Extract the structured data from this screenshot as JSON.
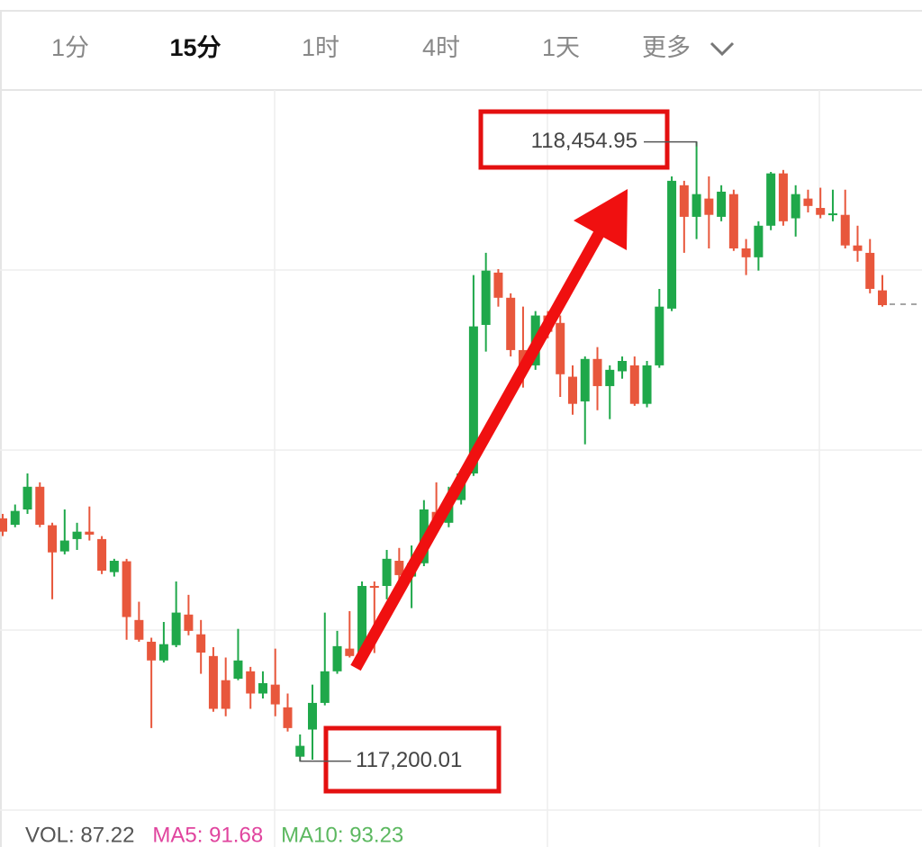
{
  "tabs": [
    "1分",
    "15分",
    "1时",
    "4时",
    "1天",
    "更多"
  ],
  "chart_data": {
    "type": "candlestick",
    "up_color": "#1fa84a",
    "down_color": "#e8573c",
    "ylim": [
      117026,
      118560
    ],
    "open": [
      117692,
      117679,
      117710,
      117756,
      117678,
      117625,
      117650,
      117665,
      117650,
      117583,
      117605,
      117486,
      117442,
      117404,
      117435,
      117497,
      117457,
      117413,
      117364,
      117367,
      117382,
      117337,
      117355,
      117309,
      117209,
      117264,
      117318,
      117382,
      117428,
      117413,
      117555,
      117555,
      117606,
      117574,
      117601,
      117705,
      117683,
      117729,
      117783,
      118084,
      118190,
      118139,
      118033,
      118002,
      118103,
      118088,
      117979,
      117929,
      118015,
      117960,
      117990,
      118002,
      117924,
      118002,
      118117,
      118367,
      118303,
      118340,
      118303,
      118349,
      118239,
      118221,
      118285,
      118391,
      118300,
      118340,
      118321,
      118307,
      118307,
      118245,
      118230,
      118154
    ],
    "high": [
      117701,
      117720,
      117783,
      117765,
      117683,
      117710,
      117683,
      117716,
      117656,
      117610,
      117610,
      117523,
      117450,
      117482,
      117564,
      117537,
      117486,
      117431,
      117410,
      117468,
      117391,
      117382,
      117428,
      117337,
      117254,
      117355,
      117501,
      117464,
      117504,
      117564,
      117564,
      117628,
      117632,
      117637,
      117729,
      117765,
      117756,
      117792,
      118185,
      118230,
      118197,
      118148,
      118121,
      118112,
      118112,
      118103,
      118002,
      118020,
      118039,
      118002,
      118020,
      118020,
      118011,
      118157,
      118385,
      118376,
      118454.95,
      118385,
      118367,
      118358,
      118258,
      118294,
      118394,
      118398,
      118367,
      118358,
      118362,
      118358,
      118358,
      118285,
      118258,
      118185
    ],
    "low": [
      117656,
      117674,
      117701,
      117674,
      117528,
      117619,
      117628,
      117647,
      117579,
      117574,
      117446,
      117442,
      117267,
      117400,
      117431,
      117455,
      117377,
      117300,
      117291,
      117364,
      117306,
      117327,
      117291,
      117260,
      117200.01,
      117203,
      117313,
      117377,
      117410,
      117410,
      117419,
      117528,
      117537,
      117510,
      117595,
      117674,
      117674,
      117720,
      117778,
      118030,
      118121,
      118020,
      117957,
      117993,
      118057,
      117938,
      117902,
      117842,
      117911,
      117893,
      117975,
      117920,
      117917,
      117997,
      118112,
      118230,
      118258,
      118239,
      118294,
      118234,
      118185,
      118194,
      118276,
      118285,
      118263,
      118312,
      118300,
      118294,
      118239,
      118212,
      118148,
      118121
    ],
    "close": [
      117665,
      117707,
      117756,
      117679,
      117623,
      117647,
      117665,
      117659,
      117586,
      117606,
      117492,
      117446,
      117404,
      117437,
      117501,
      117464,
      117420,
      117306,
      117306,
      117404,
      117337,
      117358,
      117315,
      117267,
      117231,
      117318,
      117382,
      117433,
      117413,
      117555,
      117552,
      117610,
      117577,
      117601,
      117710,
      117683,
      117729,
      117783,
      118081,
      118194,
      118139,
      118033,
      118002,
      118103,
      118070,
      117984,
      117924,
      118015,
      117960,
      117993,
      118011,
      117924,
      118002,
      118121,
      118376,
      118303,
      118349,
      118307,
      118354,
      118239,
      118221,
      118285,
      118391,
      118294,
      118349,
      118325,
      118307,
      118310,
      118245,
      118234,
      118157,
      118124
    ],
    "annotations": [
      {
        "label": "118,454.95",
        "value": 118454.95
      },
      {
        "label": "117,200.01",
        "value": 117200.01
      }
    ],
    "indicators": [
      {
        "text": "VOL: 87.22",
        "color": "#555555"
      },
      {
        "text": "MA5: 91.68",
        "color": "#e0449e"
      },
      {
        "text": "MA10: 93.23",
        "color": "#5cb860"
      }
    ]
  }
}
